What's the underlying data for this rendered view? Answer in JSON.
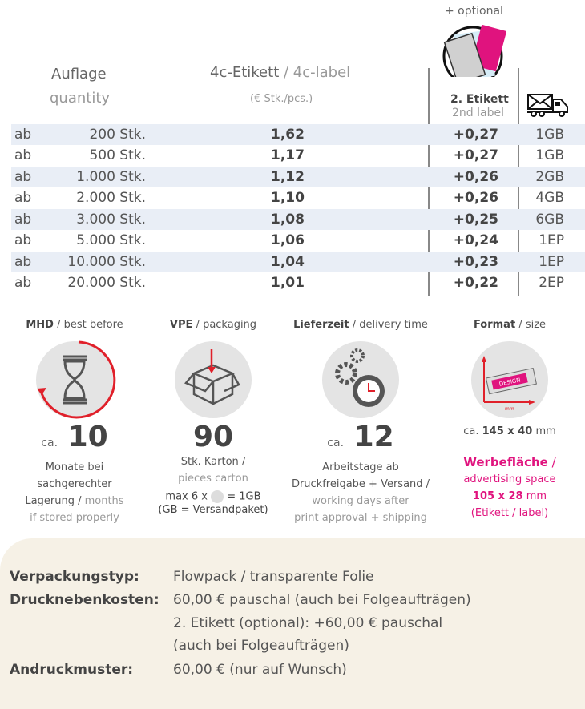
{
  "header": {
    "optional": "+ optional",
    "quantity_de": "Auflage",
    "quantity_en": "quantity",
    "label_de": "4c-Etikett",
    "label_en": "4c-label",
    "unit": "(€ Stk./pcs.)",
    "second_de": "2. Etikett",
    "second_en": "2nd label",
    "icons": {
      "second_label": "second-label-icon",
      "shipping": "mail-truck-icon"
    }
  },
  "rows": [
    {
      "ab": "ab",
      "qty": "200 Stk.",
      "price": "1,62",
      "opt": "+0,27",
      "ship": "1GB"
    },
    {
      "ab": "ab",
      "qty": "500 Stk.",
      "price": "1,17",
      "opt": "+0,27",
      "ship": "1GB"
    },
    {
      "ab": "ab",
      "qty": "1.000 Stk.",
      "price": "1,12",
      "opt": "+0,26",
      "ship": "2GB"
    },
    {
      "ab": "ab",
      "qty": "2.000 Stk.",
      "price": "1,10",
      "opt": "+0,26",
      "ship": "4GB"
    },
    {
      "ab": "ab",
      "qty": "3.000 Stk.",
      "price": "1,08",
      "opt": "+0,25",
      "ship": "6GB"
    },
    {
      "ab": "ab",
      "qty": "5.000 Stk.",
      "price": "1,06",
      "opt": "+0,24",
      "ship": "1EP"
    },
    {
      "ab": "ab",
      "qty": "10.000 Stk.",
      "price": "1,04",
      "opt": "+0,23",
      "ship": "1EP"
    },
    {
      "ab": "ab",
      "qty": "20.000 Stk.",
      "price": "1,01",
      "opt": "+0,22",
      "ship": "2EP"
    }
  ],
  "info": {
    "mhd": {
      "title_de": "MHD",
      "title_en": "best before",
      "ca": "ca.",
      "value": "10",
      "l1": "Monate bei",
      "l2": "sachgerechter",
      "l3a": "Lagerung /",
      "l3b": " months",
      "l4": "if stored properly"
    },
    "vpe": {
      "title_de": "VPE",
      "title_en": "packaging",
      "value": "90",
      "l1": "Stk. Karton /",
      "l2": "pieces carton",
      "l3a": "max 6 x",
      "l3b": "= 1GB",
      "l4": "(GB = Versandpaket)"
    },
    "lieferzeit": {
      "title_de": "Lieferzeit",
      "title_en": "delivery time",
      "ca": "ca.",
      "value": "12",
      "l1": "Arbeitstage ab",
      "l2": "Druckfreigabe + Versand /",
      "l3": "working days after",
      "l4": "print approval + shipping"
    },
    "format": {
      "title_de": "Format",
      "title_en": "size",
      "design": "DESIGN",
      "mm": "mm",
      "size_ca": "ca.",
      "size": "145 x 40",
      "size_unit": "mm",
      "ad_de": "Werbefläche",
      "ad_en": "advertising space",
      "ad_size": "105 x 28",
      "ad_unit": "mm",
      "ad_note": "(Etikett / label)"
    }
  },
  "details": [
    {
      "key": "Verpackungstyp:",
      "value": "Flowpack / transparente Folie"
    },
    {
      "key": "Drucknebenkosten:",
      "value": "60,00 € pauschal (auch bei Folgeaufträgen)"
    },
    {
      "key": "",
      "value": "2. Etikett (optional): +60,00 € pauschal"
    },
    {
      "key": "",
      "value": "(auch bei Folgeaufträgen)"
    },
    {
      "key": "Andruckmuster:",
      "value": "60,00 € (nur auf Wunsch)"
    }
  ]
}
